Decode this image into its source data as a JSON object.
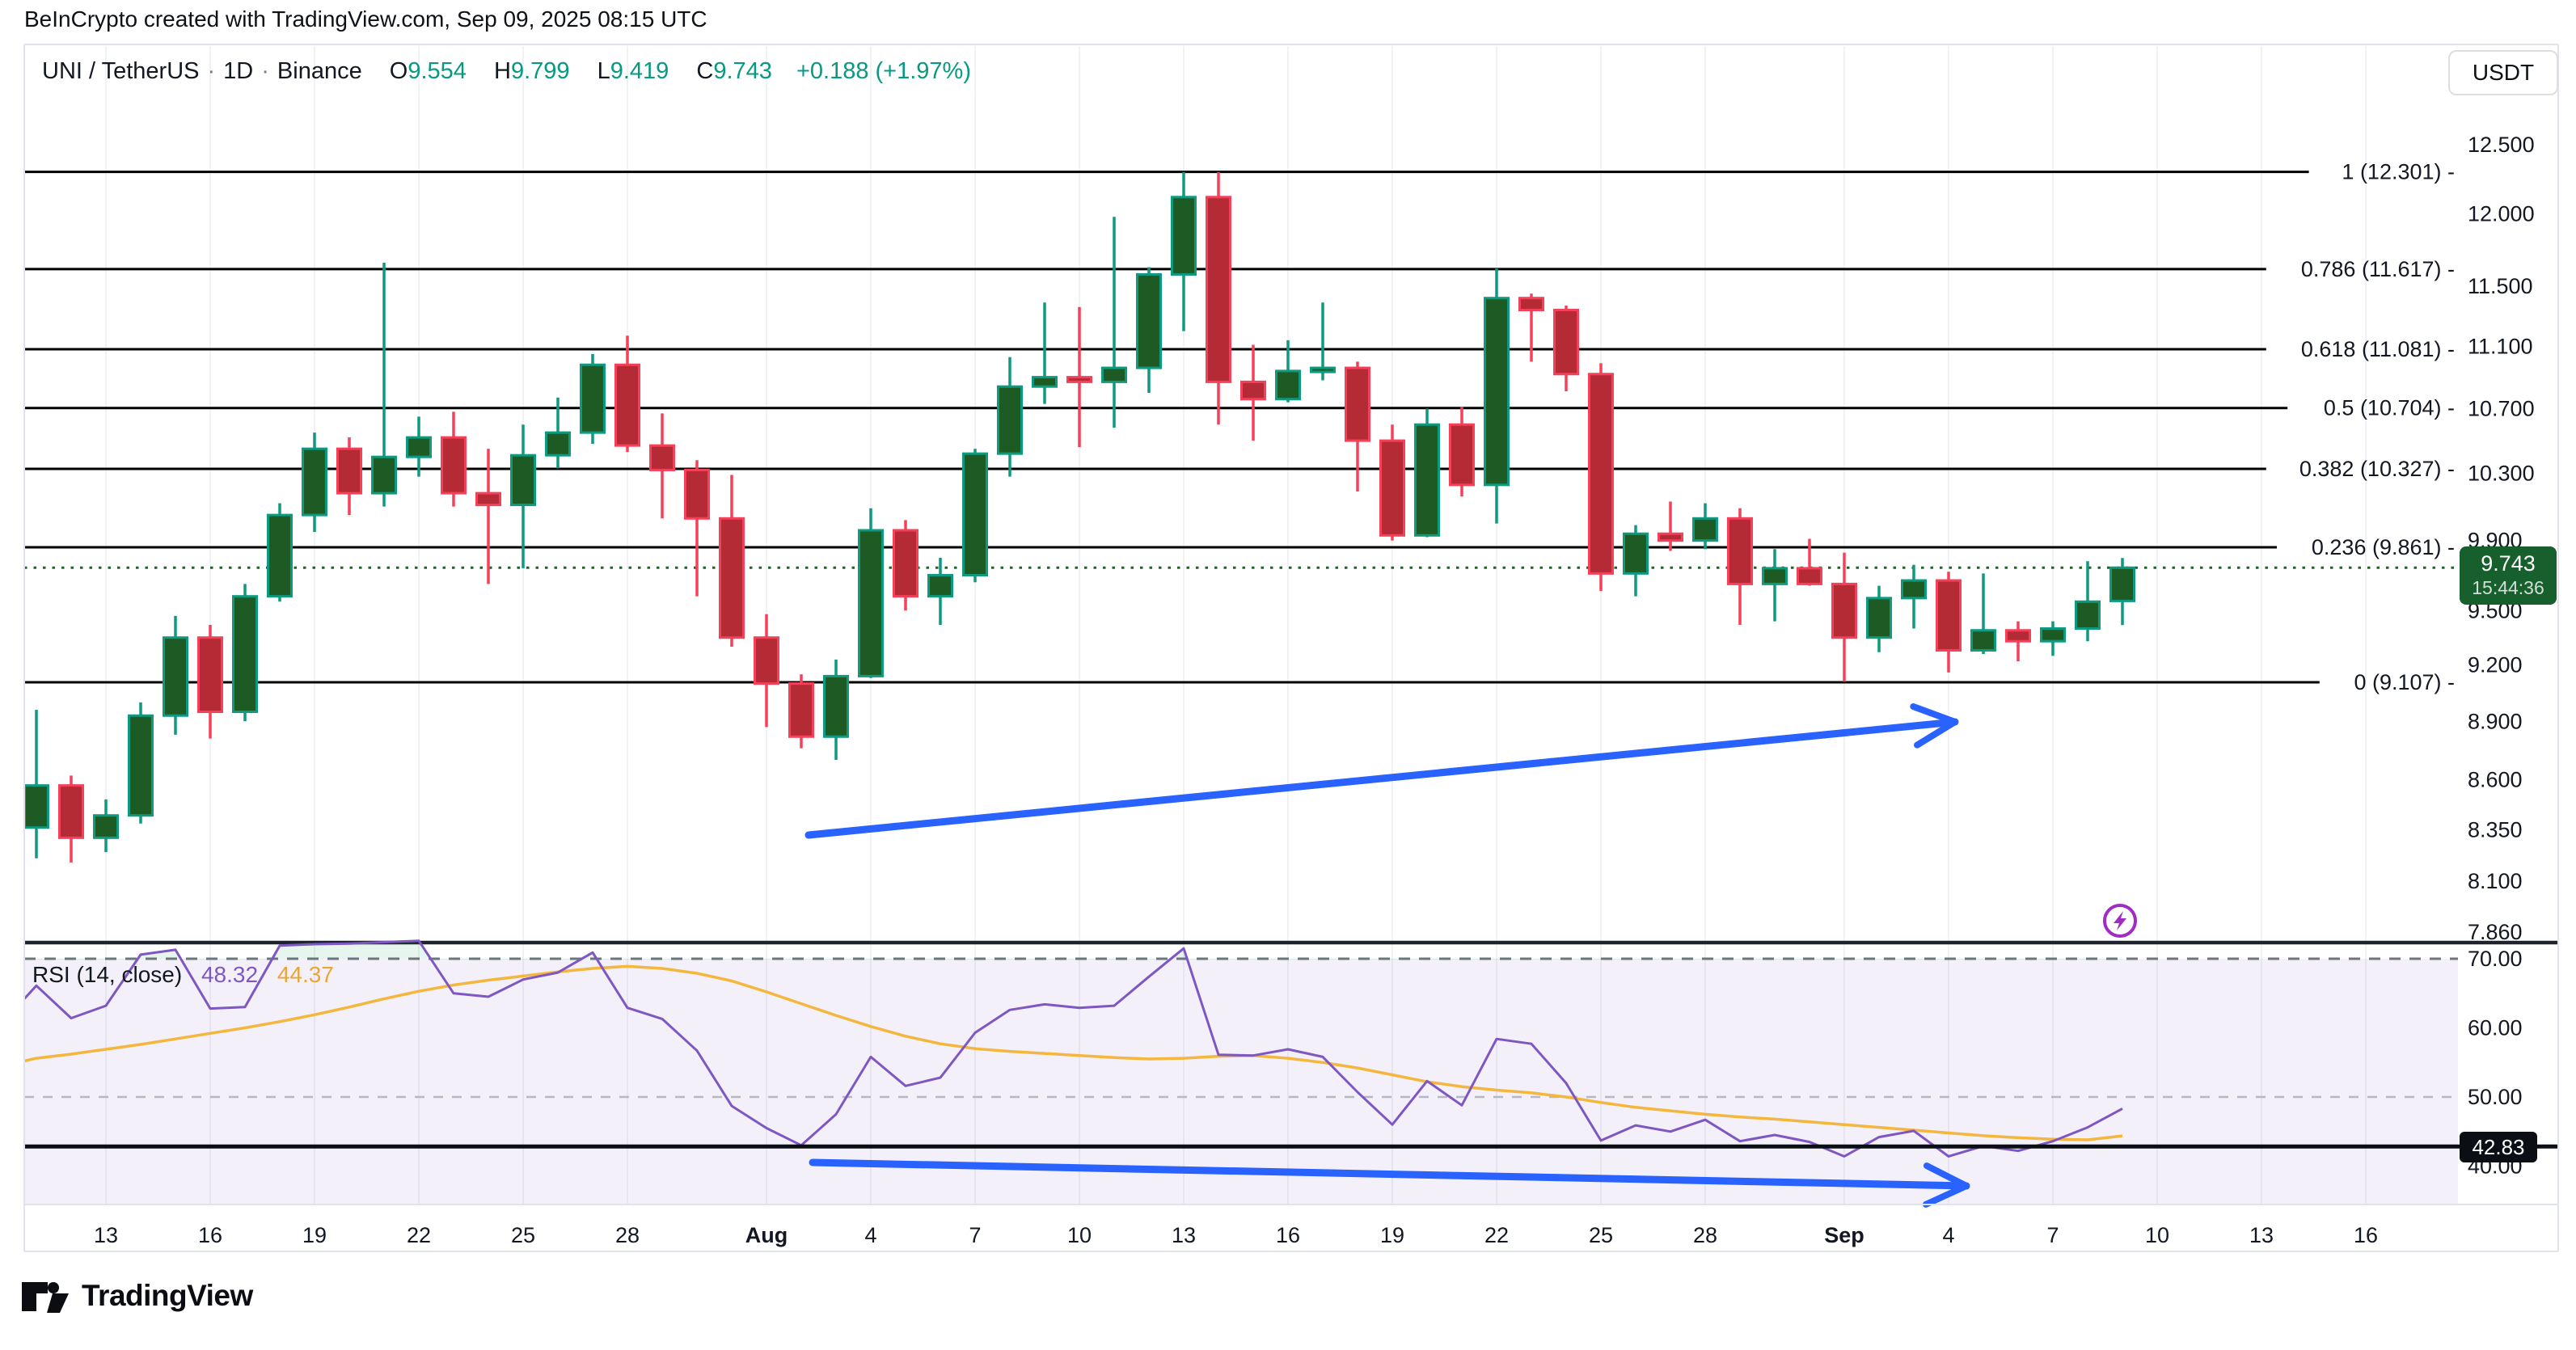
{
  "header": {
    "attribution": "BeInCrypto created with TradingView.com, Sep 09, 2025 08:15 UTC"
  },
  "symbol_bar": {
    "title": "UNI / TetherUS",
    "sep": "·",
    "interval": "1D",
    "exchange": "Binance",
    "o_label": "O",
    "o": "9.554",
    "h_label": "H",
    "h": "9.799",
    "l_label": "L",
    "l": "9.419",
    "c_label": "C",
    "c": "9.743",
    "change": "+0.188 (+1.97%)"
  },
  "toolbar": {
    "currency_button": "USDT"
  },
  "price_badge": {
    "value": "9.743",
    "countdown": "15:44:36"
  },
  "rsi_badge": {
    "value": "42.83"
  },
  "rsi_legend": {
    "label": "RSI (14, close)",
    "value": "48.32",
    "ma_value": "44.37"
  },
  "watermark": {
    "brand": "TradingView"
  },
  "chart_data": {
    "type": "candlestick",
    "title": "UNI / TetherUS daily with Fibonacci retracement and RSI",
    "price_axis_ticks": [
      {
        "label": "12.500",
        "v": 12.5
      },
      {
        "label": "12.000",
        "v": 12.0
      },
      {
        "label": "11.500",
        "v": 11.5
      },
      {
        "label": "11.100",
        "v": 11.1
      },
      {
        "label": "10.700",
        "v": 10.7
      },
      {
        "label": "10.300",
        "v": 10.3
      },
      {
        "label": "9.900",
        "v": 9.9
      },
      {
        "label": "9.500",
        "v": 9.5
      },
      {
        "label": "9.200",
        "v": 9.2
      },
      {
        "label": "8.900",
        "v": 8.9
      },
      {
        "label": "8.600",
        "v": 8.6
      },
      {
        "label": "8.350",
        "v": 8.35
      },
      {
        "label": "8.100",
        "v": 8.1
      },
      {
        "label": "7.860",
        "v": 7.86
      }
    ],
    "fib_levels": [
      {
        "label": "1 (12.301)",
        "price": 12.301
      },
      {
        "label": "0.786 (11.617)",
        "price": 11.617
      },
      {
        "label": "0.618 (11.081)",
        "price": 11.081
      },
      {
        "label": "0.5 (10.704)",
        "price": 10.704
      },
      {
        "label": "0.382 (10.327)",
        "price": 10.327
      },
      {
        "label": "0.236 (9.861)",
        "price": 9.861
      },
      {
        "label": "0 (9.107)",
        "price": 9.107
      }
    ],
    "current_price": 9.743,
    "candles": [
      {
        "o": 8.36,
        "h": 8.96,
        "l": 8.21,
        "c": 8.57
      },
      {
        "o": 8.57,
        "h": 8.62,
        "l": 8.19,
        "c": 8.31
      },
      {
        "o": 8.31,
        "h": 8.5,
        "l": 8.24,
        "c": 8.42
      },
      {
        "o": 8.42,
        "h": 9.0,
        "l": 8.38,
        "c": 8.93
      },
      {
        "o": 8.93,
        "h": 9.47,
        "l": 8.83,
        "c": 9.35
      },
      {
        "o": 9.35,
        "h": 9.42,
        "l": 8.81,
        "c": 8.95
      },
      {
        "o": 8.95,
        "h": 9.65,
        "l": 8.9,
        "c": 9.58
      },
      {
        "o": 9.58,
        "h": 10.12,
        "l": 9.55,
        "c": 10.05
      },
      {
        "o": 10.05,
        "h": 10.55,
        "l": 9.95,
        "c": 10.45
      },
      {
        "o": 10.45,
        "h": 10.52,
        "l": 10.05,
        "c": 10.18
      },
      {
        "o": 10.18,
        "h": 11.66,
        "l": 10.1,
        "c": 10.4
      },
      {
        "o": 10.4,
        "h": 10.65,
        "l": 10.28,
        "c": 10.52
      },
      {
        "o": 10.52,
        "h": 10.68,
        "l": 10.1,
        "c": 10.18
      },
      {
        "o": 10.18,
        "h": 10.45,
        "l": 9.65,
        "c": 10.11
      },
      {
        "o": 10.11,
        "h": 10.6,
        "l": 9.74,
        "c": 10.41
      },
      {
        "o": 10.41,
        "h": 10.77,
        "l": 10.33,
        "c": 10.55
      },
      {
        "o": 10.55,
        "h": 11.05,
        "l": 10.48,
        "c": 10.98
      },
      {
        "o": 10.98,
        "h": 11.17,
        "l": 10.43,
        "c": 10.47
      },
      {
        "o": 10.47,
        "h": 10.67,
        "l": 10.03,
        "c": 10.32
      },
      {
        "o": 10.32,
        "h": 10.38,
        "l": 9.58,
        "c": 10.03
      },
      {
        "o": 10.03,
        "h": 10.29,
        "l": 9.3,
        "c": 9.35
      },
      {
        "o": 9.35,
        "h": 9.48,
        "l": 8.87,
        "c": 9.1
      },
      {
        "o": 9.1,
        "h": 9.15,
        "l": 8.76,
        "c": 8.82
      },
      {
        "o": 8.82,
        "h": 9.23,
        "l": 8.7,
        "c": 9.14
      },
      {
        "o": 9.14,
        "h": 10.09,
        "l": 9.13,
        "c": 9.96
      },
      {
        "o": 9.96,
        "h": 10.02,
        "l": 9.5,
        "c": 9.58
      },
      {
        "o": 9.58,
        "h": 9.8,
        "l": 9.42,
        "c": 9.7
      },
      {
        "o": 9.7,
        "h": 10.45,
        "l": 9.66,
        "c": 10.42
      },
      {
        "o": 10.42,
        "h": 11.03,
        "l": 10.28,
        "c": 10.84
      },
      {
        "o": 10.84,
        "h": 11.39,
        "l": 10.73,
        "c": 10.9
      },
      {
        "o": 10.9,
        "h": 11.36,
        "l": 10.46,
        "c": 10.87
      },
      {
        "o": 10.87,
        "h": 11.98,
        "l": 10.58,
        "c": 10.96
      },
      {
        "o": 10.96,
        "h": 11.63,
        "l": 10.8,
        "c": 11.58
      },
      {
        "o": 11.58,
        "h": 12.3,
        "l": 11.2,
        "c": 12.12
      },
      {
        "o": 12.12,
        "h": 12.3,
        "l": 10.6,
        "c": 10.87
      },
      {
        "o": 10.87,
        "h": 11.11,
        "l": 10.5,
        "c": 10.76
      },
      {
        "o": 10.76,
        "h": 11.14,
        "l": 10.74,
        "c": 10.94
      },
      {
        "o": 10.94,
        "h": 11.39,
        "l": 10.88,
        "c": 10.96
      },
      {
        "o": 10.96,
        "h": 11.0,
        "l": 10.19,
        "c": 10.5
      },
      {
        "o": 10.5,
        "h": 10.6,
        "l": 9.9,
        "c": 9.93
      },
      {
        "o": 9.93,
        "h": 10.7,
        "l": 9.92,
        "c": 10.6
      },
      {
        "o": 10.6,
        "h": 10.71,
        "l": 10.16,
        "c": 10.23
      },
      {
        "o": 10.23,
        "h": 11.62,
        "l": 10.0,
        "c": 11.42
      },
      {
        "o": 11.42,
        "h": 11.45,
        "l": 11.0,
        "c": 11.34
      },
      {
        "o": 11.34,
        "h": 11.37,
        "l": 10.81,
        "c": 10.92
      },
      {
        "o": 10.92,
        "h": 10.99,
        "l": 9.61,
        "c": 9.71
      },
      {
        "o": 9.71,
        "h": 9.99,
        "l": 9.58,
        "c": 9.94
      },
      {
        "o": 9.94,
        "h": 10.13,
        "l": 9.84,
        "c": 9.9
      },
      {
        "o": 9.9,
        "h": 10.12,
        "l": 9.85,
        "c": 10.03
      },
      {
        "o": 10.03,
        "h": 10.09,
        "l": 9.42,
        "c": 9.65
      },
      {
        "o": 9.65,
        "h": 9.85,
        "l": 9.44,
        "c": 9.74
      },
      {
        "o": 9.74,
        "h": 9.91,
        "l": 9.64,
        "c": 9.65
      },
      {
        "o": 9.65,
        "h": 9.83,
        "l": 9.11,
        "c": 9.35
      },
      {
        "o": 9.35,
        "h": 9.64,
        "l": 9.27,
        "c": 9.57
      },
      {
        "o": 9.57,
        "h": 9.76,
        "l": 9.4,
        "c": 9.67
      },
      {
        "o": 9.67,
        "h": 9.72,
        "l": 9.16,
        "c": 9.28
      },
      {
        "o": 9.28,
        "h": 9.71,
        "l": 9.26,
        "c": 9.39
      },
      {
        "o": 9.39,
        "h": 9.44,
        "l": 9.22,
        "c": 9.33
      },
      {
        "o": 9.33,
        "h": 9.44,
        "l": 9.25,
        "c": 9.4
      },
      {
        "o": 9.4,
        "h": 9.78,
        "l": 9.33,
        "c": 9.55
      },
      {
        "o": 9.554,
        "h": 9.799,
        "l": 9.419,
        "c": 9.743
      }
    ],
    "x_axis": [
      {
        "i": 2,
        "label": "13",
        "bold": false
      },
      {
        "i": 5,
        "label": "16",
        "bold": false
      },
      {
        "i": 8,
        "label": "19",
        "bold": false
      },
      {
        "i": 11,
        "label": "22",
        "bold": false
      },
      {
        "i": 14,
        "label": "25",
        "bold": false
      },
      {
        "i": 17,
        "label": "28",
        "bold": false
      },
      {
        "i": 21,
        "label": "Aug",
        "bold": true
      },
      {
        "i": 24,
        "label": "4",
        "bold": false
      },
      {
        "i": 27,
        "label": "7",
        "bold": false
      },
      {
        "i": 30,
        "label": "10",
        "bold": false
      },
      {
        "i": 33,
        "label": "13",
        "bold": false
      },
      {
        "i": 36,
        "label": "16",
        "bold": false
      },
      {
        "i": 39,
        "label": "19",
        "bold": false
      },
      {
        "i": 42,
        "label": "22",
        "bold": false
      },
      {
        "i": 45,
        "label": "25",
        "bold": false
      },
      {
        "i": 48,
        "label": "28",
        "bold": false
      },
      {
        "i": 52,
        "label": "Sep",
        "bold": true
      },
      {
        "i": 55,
        "label": "4",
        "bold": false
      },
      {
        "i": 58,
        "label": "7",
        "bold": false
      },
      {
        "i": 61,
        "label": "10",
        "bold": false
      },
      {
        "i": 64,
        "label": "13",
        "bold": false
      },
      {
        "i": 67,
        "label": "16",
        "bold": false
      }
    ],
    "rsi": {
      "value": 48.32,
      "ma_value": 44.37,
      "hline": 42.83,
      "axis_ticks": [
        {
          "label": "70.00",
          "v": 70
        },
        {
          "label": "60.00",
          "v": 60
        },
        {
          "label": "50.00",
          "v": 50
        },
        {
          "label": "40.00",
          "v": 40
        }
      ],
      "upper_band": 70,
      "mid_band": 50,
      "series": [
        64.2,
        66.1,
        61.4,
        63.2,
        70.6,
        71.3,
        62.8,
        63.0,
        71.9,
        72.1,
        72.2,
        72.4,
        72.6,
        65.0,
        64.5,
        67.0,
        68.0,
        70.9,
        62.9,
        61.3,
        56.7,
        48.7,
        45.5,
        43.0,
        47.5,
        55.8,
        51.6,
        52.8,
        59.3,
        62.6,
        63.4,
        62.9,
        63.2,
        67.4,
        71.5,
        56.1,
        56.0,
        56.9,
        55.8,
        50.7,
        46.0,
        52.3,
        48.8,
        58.4,
        57.7,
        52.0,
        43.7,
        45.9,
        45.0,
        46.7,
        43.6,
        44.5,
        43.5,
        41.4,
        44.2,
        45.1,
        41.4,
        42.9,
        42.2,
        43.6,
        45.6,
        48.32
      ],
      "ma_series": [
        55.2,
        55.6,
        56.2,
        56.9,
        57.6,
        58.4,
        59.2,
        60.0,
        60.9,
        61.9,
        63.0,
        64.2,
        65.3,
        66.2,
        66.9,
        67.5,
        68.1,
        68.6,
        68.9,
        68.6,
        67.9,
        66.8,
        65.2,
        63.5,
        61.8,
        60.2,
        58.8,
        57.7,
        57.0,
        56.6,
        56.3,
        56.0,
        55.7,
        55.5,
        55.6,
        55.9,
        56.0,
        55.6,
        55.0,
        54.2,
        53.2,
        52.2,
        51.5,
        51.0,
        50.6,
        50.0,
        49.2,
        48.5,
        48.0,
        47.5,
        47.1,
        46.8,
        46.4,
        46.0,
        45.6,
        45.2,
        44.8,
        44.4,
        44.1,
        43.9,
        43.8,
        44.37
      ]
    },
    "annotations": {
      "price_arrow": {
        "x1": 1000,
        "y1": 1033,
        "x2": 2418,
        "y2": 893
      },
      "rsi_arrow": {
        "x1": 1005,
        "y1": 1438,
        "x2": 2432,
        "y2": 1467
      },
      "lightning": {
        "x": 2622,
        "y": 1139
      }
    },
    "colors": {
      "up_fill": "#1e5b24",
      "up_stroke": "#0f9a80",
      "down_fill": "#b42b36",
      "down_stroke": "#f5405a",
      "fib_line": "#000000",
      "dotted_price": "#1c6622",
      "rsi_line": "#7e57c2",
      "rsi_ma_line": "#f4b63c",
      "arrow": "#2962ff",
      "lightning": "#a12cc4",
      "band_fill": "rgba(140,110,205,0.10)",
      "overbought_fill": "rgba(8,153,80,0.10)",
      "grid": "#f1f2f4",
      "frame": "#e0e3eb",
      "divider": "#1e222d",
      "text": "#131722"
    },
    "layout_hint": {
      "price_scale": "log",
      "grid": "vertical-only",
      "legend_position": "top-left"
    }
  }
}
